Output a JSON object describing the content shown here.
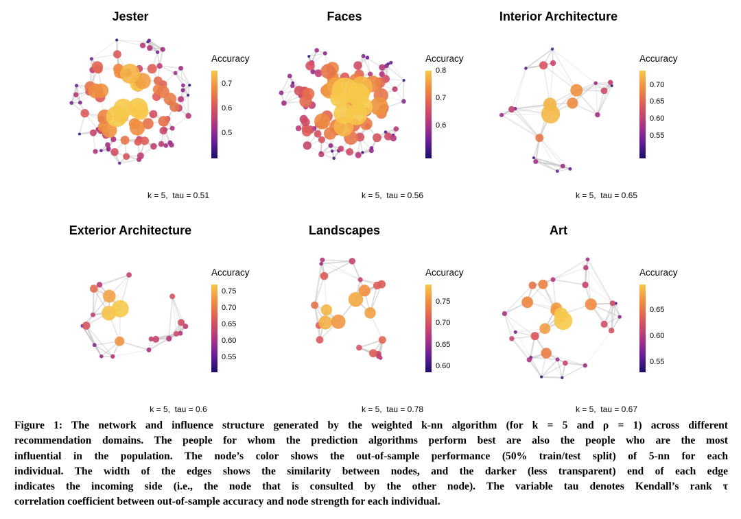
{
  "panels": [
    {
      "title": "Jester",
      "legend_title": "Accuracy",
      "ticks": [
        "0.7",
        "0.6",
        "0.5"
      ],
      "note": "k = 5,  tau = 0.51"
    },
    {
      "title": "Faces",
      "legend_title": "Accuracy",
      "ticks": [
        "0.8",
        "0.7",
        "0.6"
      ],
      "note": "k = 5,  tau = 0.56"
    },
    {
      "title": "Interior Architecture",
      "legend_title": "Accuracy",
      "ticks": [
        "0.70",
        "0.65",
        "0.60",
        "0.55"
      ],
      "note": "k = 5,  tau = 0.65"
    },
    {
      "title": "Exterior Architecture",
      "legend_title": "Accuracy",
      "ticks": [
        "0.75",
        "0.70",
        "0.65",
        "0.60",
        "0.55"
      ],
      "note": "k = 5,  tau = 0.6"
    },
    {
      "title": "Landscapes",
      "legend_title": "Accuracy",
      "ticks": [
        "0.75",
        "0.70",
        "0.65",
        "0.60"
      ],
      "note": "k = 5,  tau = 0.78"
    },
    {
      "title": "Art",
      "legend_title": "Accuracy",
      "ticks": [
        "0.65",
        "0.60",
        "0.55"
      ],
      "note": "k = 5,  tau = 0.67"
    }
  ],
  "caption": {
    "line1": "Figure 1: The network and influence structure generated by the weighted k-nn algorithm (for k = 5 and ρ = 1) across different",
    "line2": "recommendation domains. The people for whom the prediction algorithms perform best are also the people who are the most",
    "line3": "influential in the population. The node’s color shows the out-of-sample performance (50% train/test split) of 5-nn for each",
    "line4": "individual. The width of the edges shows the similarity between nodes, and the darker (less transparent) end of each edge",
    "line5": "indicates the incoming side (i.e., the node that is consulted by the other node). The variable tau denotes Kendall’s rank τ",
    "line6": "correlation coefficient between out-of-sample accuracy and node strength for each individual."
  },
  "colors": {
    "low": "#1a0f6b",
    "mid1": "#6b1f9a",
    "mid2": "#b3357f",
    "mid3": "#dd5a5a",
    "mid4": "#ef8b3f",
    "high": "#f6c94a",
    "edge": "#bdbdbd"
  }
}
